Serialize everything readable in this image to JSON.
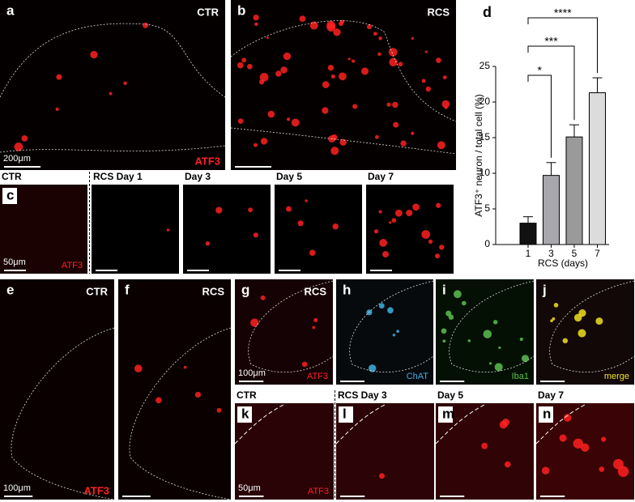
{
  "panels": [
    {
      "label": "a",
      "condition": "CTR",
      "stain": "ATF3",
      "scale": "200μm",
      "stain_color": "#ff2020"
    },
    {
      "label": "b",
      "condition": "RCS",
      "stain_color": "#ff2020"
    },
    {
      "label": "c",
      "title": "CTR",
      "stain": "ATF3",
      "scale": "50μm",
      "stain_color": "#ff2020"
    },
    {
      "title": "RCS Day 1",
      "stain_color": "#ff2020"
    },
    {
      "title": "Day 3",
      "stain_color": "#ff2020"
    },
    {
      "title": "Day 5",
      "stain_color": "#ff2020"
    },
    {
      "title": "Day 7",
      "stain_color": "#ff2020"
    },
    {
      "label": "e",
      "condition": "CTR",
      "stain": "ATF3",
      "scale": "100μm",
      "stain_color": "#ff2020"
    },
    {
      "label": "f",
      "condition": "RCS",
      "stain_color": "#ff2020"
    },
    {
      "label": "g",
      "condition": "RCS",
      "stain": "ATF3",
      "scale": "100μm",
      "stain_color": "#ff2020"
    },
    {
      "label": "h",
      "stain": "ChAT",
      "stain_color": "#3fb0e0"
    },
    {
      "label": "i",
      "stain": "Iba1",
      "stain_color": "#5cc050"
    },
    {
      "label": "j",
      "stain": "merge",
      "stain_color": "#f0e020"
    },
    {
      "label": "k",
      "title": "CTR",
      "stain": "ATF3",
      "scale": "50μm",
      "stain_color": "#ff2020"
    },
    {
      "label": "l",
      "title": "RCS Day 3",
      "stain_color": "#ff2020"
    },
    {
      "label": "m",
      "title": "Day 5",
      "stain_color": "#ff2020"
    },
    {
      "label": "n",
      "title": "Day 7",
      "stain_color": "#ff2020"
    }
  ],
  "chart_panel_label": "d",
  "chart_data": {
    "type": "bar",
    "ylabel": "ATF3⁺ neuron / total cell (%)",
    "xlabel": "RCS (days)",
    "categories": [
      "1",
      "3",
      "5",
      "7"
    ],
    "values": [
      3.0,
      9.7,
      15.1,
      21.3
    ],
    "errors": [
      0.9,
      1.8,
      1.7,
      2.1
    ],
    "colors": [
      "#111111",
      "#a7a7ad",
      "#9a9a9a",
      "#dcdcdc"
    ],
    "ylim": [
      0,
      25
    ],
    "yticks": [
      0,
      5,
      10,
      15,
      20,
      25
    ],
    "significance": [
      "*",
      "***",
      "****"
    ]
  }
}
